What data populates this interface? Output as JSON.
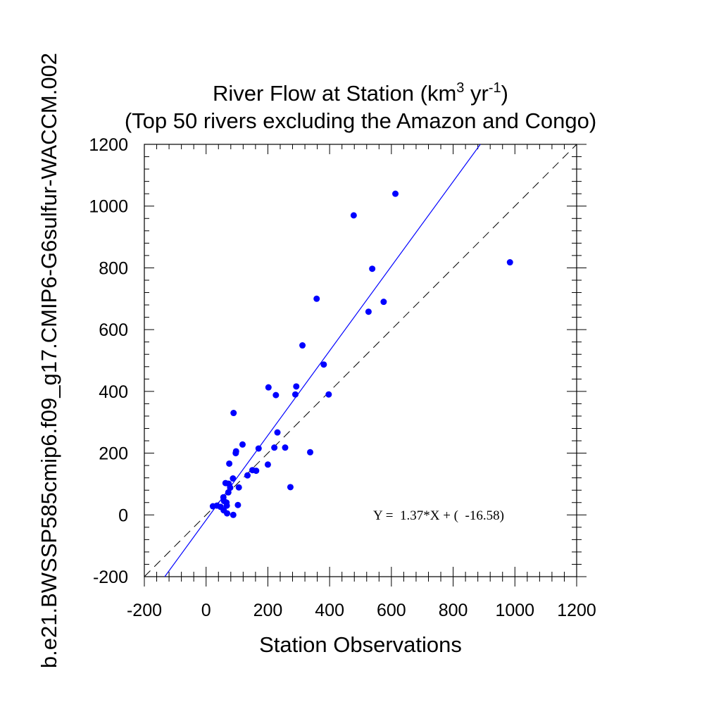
{
  "chart_data": {
    "type": "scatter",
    "title_line1_main": "River Flow at Station (km",
    "title_line1_sup1": "3",
    "title_line1_mid": " yr",
    "title_line1_sup2": "-1",
    "title_line1_end": ")",
    "title_line2": "(Top 50 rivers excluding the Amazon and Congo)",
    "xlabel": "Station Observations",
    "ylabel": "b.e21.BWSSP585cmip6.f09_g17.CMIP6-G6sulfur-WACCM.002",
    "xlim": [
      -200,
      1200
    ],
    "ylim": [
      -200,
      1200
    ],
    "xticks": [
      -200,
      0,
      200,
      400,
      600,
      800,
      1000,
      1200
    ],
    "yticks": [
      -200,
      0,
      200,
      400,
      600,
      800,
      1000,
      1200
    ],
    "xtick_labels": [
      "-200",
      "0",
      "200",
      "400",
      "600",
      "800",
      "1000",
      "1200"
    ],
    "ytick_labels": [
      "-200",
      "0",
      "200",
      "400",
      "600",
      "800",
      "1000",
      "1200"
    ],
    "regression": {
      "slope": 1.37,
      "intercept": -16.58,
      "label": "Y =  1.37*X + (  -16.58)"
    },
    "reference_line": {
      "type": "one-to-one",
      "style": "dashed",
      "color": "#000000"
    },
    "point_color": "#0000ff",
    "regression_color": "#0000ff",
    "grid": false,
    "points": [
      {
        "x": 613,
        "y": 1040
      },
      {
        "x": 478,
        "y": 970
      },
      {
        "x": 984,
        "y": 818
      },
      {
        "x": 538,
        "y": 797
      },
      {
        "x": 358,
        "y": 700
      },
      {
        "x": 575,
        "y": 690
      },
      {
        "x": 526,
        "y": 658
      },
      {
        "x": 312,
        "y": 549
      },
      {
        "x": 381,
        "y": 487
      },
      {
        "x": 202,
        "y": 413
      },
      {
        "x": 292,
        "y": 416
      },
      {
        "x": 226,
        "y": 388
      },
      {
        "x": 289,
        "y": 390
      },
      {
        "x": 397,
        "y": 390
      },
      {
        "x": 89,
        "y": 330
      },
      {
        "x": 231,
        "y": 267
      },
      {
        "x": 118,
        "y": 228
      },
      {
        "x": 97,
        "y": 206
      },
      {
        "x": 96,
        "y": 200
      },
      {
        "x": 170,
        "y": 215
      },
      {
        "x": 221,
        "y": 218
      },
      {
        "x": 256,
        "y": 218
      },
      {
        "x": 337,
        "y": 203
      },
      {
        "x": 75,
        "y": 166
      },
      {
        "x": 200,
        "y": 163
      },
      {
        "x": 150,
        "y": 145
      },
      {
        "x": 162,
        "y": 143
      },
      {
        "x": 134,
        "y": 128
      },
      {
        "x": 87,
        "y": 118
      },
      {
        "x": 63,
        "y": 103
      },
      {
        "x": 73,
        "y": 101
      },
      {
        "x": 106,
        "y": 89
      },
      {
        "x": 78,
        "y": 88
      },
      {
        "x": 273,
        "y": 90
      },
      {
        "x": 72,
        "y": 73
      },
      {
        "x": 56,
        "y": 57
      },
      {
        "x": 58,
        "y": 45
      },
      {
        "x": 66,
        "y": 40
      },
      {
        "x": 103,
        "y": 32
      },
      {
        "x": 22,
        "y": 28
      },
      {
        "x": 35,
        "y": 30
      },
      {
        "x": 47,
        "y": 26
      },
      {
        "x": 67,
        "y": 30
      },
      {
        "x": 57,
        "y": 15
      },
      {
        "x": 68,
        "y": 5
      },
      {
        "x": 88,
        "y": 0
      }
    ]
  }
}
